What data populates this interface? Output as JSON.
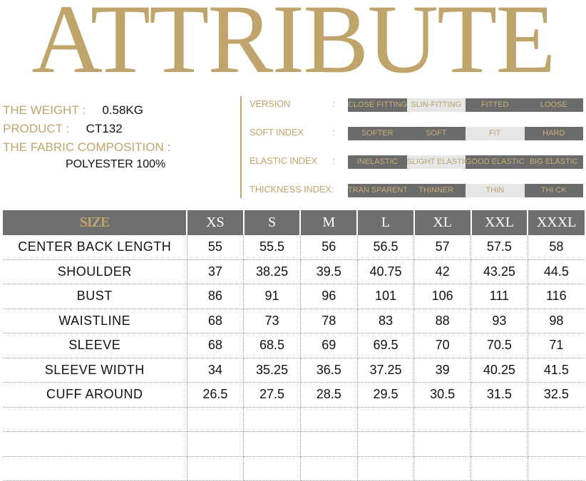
{
  "title": "ATTRIBUTE",
  "info": {
    "weight_label": "THE WEIGHT :",
    "weight_value": "0.58KG",
    "product_label": "PRODUCT :",
    "product_value": "CT132",
    "fabric_label": "THE FABRIC COMPOSITION :",
    "fabric_value": "POLYESTER 100%"
  },
  "attributes": [
    {
      "label": "VERSION",
      "options": [
        {
          "text": "CLOSE FITTING",
          "style": "dark"
        },
        {
          "text": "SLIN-FITTING",
          "style": "light"
        },
        {
          "text": "FITTED",
          "style": "dark"
        },
        {
          "text": "LOOSE",
          "style": "dark"
        }
      ]
    },
    {
      "label": "SOFT INDEX",
      "options": [
        {
          "text": "SOFTER",
          "style": "dark"
        },
        {
          "text": "SOFT",
          "style": "dark"
        },
        {
          "text": "FIT",
          "style": "light"
        },
        {
          "text": "HARD",
          "style": "dark"
        }
      ]
    },
    {
      "label": "ELASTIC INDEX",
      "options": [
        {
          "text": "INELASTIC",
          "style": "dark"
        },
        {
          "text": "SLIGHT ELASTIC",
          "style": "light"
        },
        {
          "text": "GOOD ELASTIC",
          "style": "dark"
        },
        {
          "text": "BIG ELASTIC",
          "style": "dark"
        }
      ]
    },
    {
      "label": "THICKNESS INDEX:",
      "options": [
        {
          "text": "TRAN SPARENT",
          "style": "dark"
        },
        {
          "text": "THINNER",
          "style": "dark"
        },
        {
          "text": "THIN",
          "style": "light"
        },
        {
          "text": "THI CK",
          "style": "dark"
        }
      ]
    }
  ],
  "colon": ":",
  "size_table": {
    "headers": [
      "SIZE",
      "XS",
      "S",
      "M",
      "L",
      "XL",
      "XXL",
      "XXXL"
    ],
    "rows": [
      [
        "CENTER  BACK  LENGTH",
        "55",
        "55.5",
        "56",
        "56.5",
        "57",
        "57.5",
        "58"
      ],
      [
        "SHOULDER",
        "37",
        "38.25",
        "39.5",
        "40.75",
        "42",
        "43.25",
        "44.5"
      ],
      [
        "BUST",
        "86",
        "91",
        "96",
        "101",
        "106",
        "111",
        "116"
      ],
      [
        "WAISTLINE",
        "68",
        "73",
        "78",
        "83",
        "88",
        "93",
        "98"
      ],
      [
        "SLEEVE",
        "68",
        "68.5",
        "69",
        "69.5",
        "70",
        "70.5",
        "71"
      ],
      [
        "SLEEVE  WIDTH",
        "34",
        "35.25",
        "36.5",
        "37.25",
        "39",
        "40.25",
        "41.5"
      ],
      [
        "CUFF  AROUND",
        "26.5",
        "27.5",
        "28.5",
        "29.5",
        "30.5",
        "31.5",
        "32.5"
      ],
      [
        "",
        "",
        "",
        "",
        "",
        "",
        "",
        ""
      ],
      [
        "",
        "",
        "",
        "",
        "",
        "",
        "",
        ""
      ],
      [
        "",
        "",
        "",
        "",
        "",
        "",
        "",
        ""
      ]
    ]
  },
  "colors": {
    "gold": "#BFA46B",
    "dark_gray": "#6B6B6B",
    "light_gray": "#E6E6E6"
  }
}
